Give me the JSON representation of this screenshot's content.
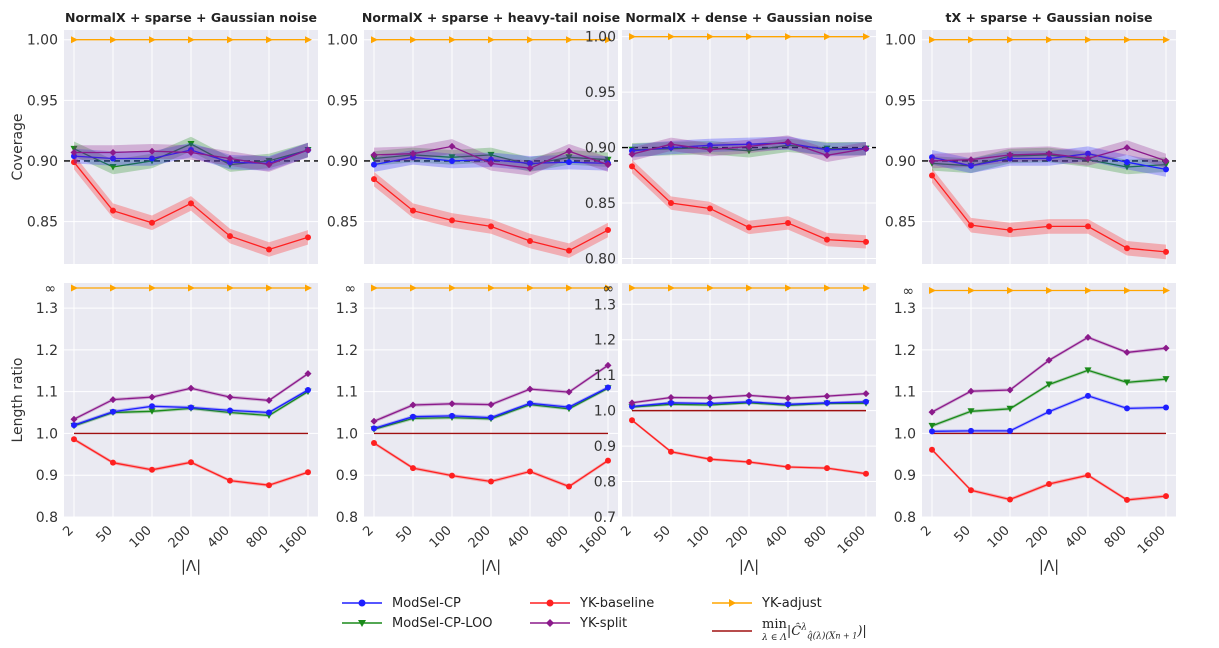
{
  "figure": {
    "x_tick_labels": [
      "2",
      "50",
      "100",
      "200",
      "400",
      "800",
      "1600"
    ],
    "x_axis_label": "|Λ|",
    "inf_label": "∞"
  },
  "legend": {
    "modsel_cp": "ModSel-CP",
    "modsel_cp_loo": "ModSel-CP-LOO",
    "yk_baseline": "YK-baseline",
    "yk_split": "YK-split",
    "yk_adjust": "YK-adjust",
    "min_length_prefix": "min",
    "min_length_sub": "λ ∈ Λ",
    "min_length_body": "|Ĉ",
    "min_length_sup": "λ",
    "min_length_rest": "q̂(λ)(X",
    "min_length_n": "n + 1",
    "min_length_end": ")|"
  },
  "colors": {
    "ModSel-CP": "#1f1fff",
    "ModSel-CP-LOO": "#1a8a1a",
    "YK-baseline": "#ff2020",
    "YK-split": "#8b1a8b",
    "YK-adjust": "#ffa500",
    "min-length": "#a01010",
    "panel_bg": "#eaeaf2",
    "grid": "#ffffff"
  },
  "chart_data": [
    {
      "type": "line",
      "title": "NormalX + sparse + Gaussian noise",
      "row": "coverage",
      "ylabel": "Coverage",
      "ylim": [
        0.815,
        1.008
      ],
      "yticks": [
        0.85,
        0.9,
        0.95,
        1.0
      ],
      "target": 0.9,
      "categories": [
        "2",
        "50",
        "100",
        "200",
        "400",
        "800",
        "1600"
      ],
      "series": [
        {
          "name": "ModSel-CP",
          "values": [
            0.904,
            0.902,
            0.902,
            0.909,
            0.899,
            0.898,
            0.909
          ]
        },
        {
          "name": "ModSel-CP-LOO",
          "values": [
            0.91,
            0.895,
            0.9,
            0.914,
            0.897,
            0.9,
            0.909
          ]
        },
        {
          "name": "YK-baseline",
          "values": [
            0.899,
            0.859,
            0.849,
            0.865,
            0.838,
            0.827,
            0.837
          ]
        },
        {
          "name": "YK-split",
          "values": [
            0.907,
            0.907,
            0.908,
            0.907,
            0.902,
            0.897,
            0.909
          ]
        },
        {
          "name": "YK-adjust",
          "values": [
            1.0,
            1.0,
            1.0,
            1.0,
            1.0,
            1.0,
            1.0
          ]
        }
      ]
    },
    {
      "type": "line",
      "title": "NormalX + sparse + heavy-tail noise",
      "row": "coverage",
      "ylabel": "",
      "ylim": [
        0.815,
        1.008
      ],
      "yticks": [
        0.85,
        0.9,
        0.95,
        1.0
      ],
      "target": 0.9,
      "categories": [
        "2",
        "50",
        "100",
        "200",
        "400",
        "800",
        "1600"
      ],
      "series": [
        {
          "name": "ModSel-CP",
          "values": [
            0.897,
            0.903,
            0.9,
            0.901,
            0.898,
            0.899,
            0.898
          ]
        },
        {
          "name": "ModSel-CP-LOO",
          "values": [
            0.902,
            0.905,
            0.903,
            0.905,
            0.897,
            0.903,
            0.901
          ]
        },
        {
          "name": "YK-baseline",
          "values": [
            0.885,
            0.859,
            0.851,
            0.846,
            0.834,
            0.826,
            0.843
          ]
        },
        {
          "name": "YK-split",
          "values": [
            0.905,
            0.906,
            0.912,
            0.898,
            0.894,
            0.908,
            0.897
          ]
        },
        {
          "name": "YK-adjust",
          "values": [
            1.0,
            1.0,
            1.0,
            1.0,
            1.0,
            1.0,
            1.0
          ]
        }
      ]
    },
    {
      "type": "line",
      "title": "NormalX + dense + Gaussian noise",
      "row": "coverage",
      "ylabel": "",
      "ylim": [
        0.795,
        1.006
      ],
      "yticks": [
        0.8,
        0.85,
        0.9,
        0.95,
        1.0
      ],
      "target": 0.9,
      "categories": [
        "2",
        "50",
        "100",
        "200",
        "400",
        "800",
        "1600"
      ],
      "series": [
        {
          "name": "ModSel-CP",
          "values": [
            0.897,
            0.9,
            0.902,
            0.903,
            0.904,
            0.898,
            0.899
          ]
        },
        {
          "name": "ModSel-CP-LOO",
          "values": [
            0.898,
            0.899,
            0.9,
            0.897,
            0.902,
            0.899,
            0.899
          ]
        },
        {
          "name": "YK-baseline",
          "values": [
            0.883,
            0.85,
            0.845,
            0.828,
            0.832,
            0.817,
            0.815
          ]
        },
        {
          "name": "YK-split",
          "values": [
            0.894,
            0.903,
            0.898,
            0.901,
            0.905,
            0.893,
            0.899
          ]
        },
        {
          "name": "YK-adjust",
          "values": [
            1.0,
            1.0,
            1.0,
            1.0,
            1.0,
            1.0,
            1.0
          ]
        }
      ]
    },
    {
      "type": "line",
      "title": "tX + sparse + Gaussian noise",
      "row": "coverage",
      "ylabel": "",
      "ylim": [
        0.815,
        1.008
      ],
      "yticks": [
        0.85,
        0.9,
        0.95,
        1.0
      ],
      "target": 0.9,
      "categories": [
        "2",
        "50",
        "100",
        "200",
        "400",
        "800",
        "1600"
      ],
      "series": [
        {
          "name": "ModSel-CP",
          "values": [
            0.903,
            0.896,
            0.902,
            0.902,
            0.906,
            0.899,
            0.893
          ]
        },
        {
          "name": "ModSel-CP-LOO",
          "values": [
            0.898,
            0.896,
            0.904,
            0.905,
            0.901,
            0.895,
            0.897
          ]
        },
        {
          "name": "YK-baseline",
          "values": [
            0.888,
            0.847,
            0.843,
            0.846,
            0.846,
            0.828,
            0.825
          ]
        },
        {
          "name": "YK-split",
          "values": [
            0.9,
            0.901,
            0.905,
            0.906,
            0.902,
            0.911,
            0.9
          ]
        },
        {
          "name": "YK-adjust",
          "values": [
            1.0,
            1.0,
            1.0,
            1.0,
            1.0,
            1.0,
            1.0
          ]
        }
      ]
    },
    {
      "type": "line",
      "row": "length",
      "ylabel": "Length ratio",
      "ylim": [
        0.8,
        1.36
      ],
      "yticks": [
        0.8,
        0.9,
        1.0,
        1.1,
        1.2,
        1.3
      ],
      "inf_value": 1.348,
      "categories": [
        "2",
        "50",
        "100",
        "200",
        "400",
        "800",
        "1600"
      ],
      "series": [
        {
          "name": "ModSel-CP",
          "values": [
            1.02,
            1.052,
            1.065,
            1.062,
            1.055,
            1.05,
            1.104
          ]
        },
        {
          "name": "ModSel-CP-LOO",
          "values": [
            1.018,
            1.05,
            1.053,
            1.06,
            1.05,
            1.043,
            1.1
          ]
        },
        {
          "name": "YK-baseline",
          "values": [
            0.986,
            0.93,
            0.913,
            0.931,
            0.887,
            0.876,
            0.907
          ]
        },
        {
          "name": "YK-split",
          "values": [
            1.034,
            1.081,
            1.087,
            1.108,
            1.087,
            1.079,
            1.143
          ]
        },
        {
          "name": "YK-adjust",
          "values": [
            "inf",
            "inf",
            "inf",
            "inf",
            "inf",
            "inf",
            "inf"
          ]
        },
        {
          "name": "min-length",
          "values": [
            1.0,
            1.0,
            1.0,
            1.0,
            1.0,
            1.0,
            1.0
          ]
        }
      ]
    },
    {
      "type": "line",
      "row": "length",
      "ylabel": "",
      "ylim": [
        0.8,
        1.36
      ],
      "yticks": [
        0.8,
        0.9,
        1.0,
        1.1,
        1.2,
        1.3
      ],
      "inf_value": 1.348,
      "categories": [
        "2",
        "50",
        "100",
        "200",
        "400",
        "800",
        "1600"
      ],
      "series": [
        {
          "name": "ModSel-CP",
          "values": [
            1.012,
            1.04,
            1.042,
            1.038,
            1.072,
            1.063,
            1.11
          ]
        },
        {
          "name": "ModSel-CP-LOO",
          "values": [
            1.01,
            1.036,
            1.038,
            1.035,
            1.069,
            1.059,
            1.108
          ]
        },
        {
          "name": "YK-baseline",
          "values": [
            0.977,
            0.917,
            0.899,
            0.885,
            0.909,
            0.873,
            0.935
          ]
        },
        {
          "name": "YK-split",
          "values": [
            1.029,
            1.068,
            1.071,
            1.069,
            1.106,
            1.099,
            1.163
          ]
        },
        {
          "name": "YK-adjust",
          "values": [
            "inf",
            "inf",
            "inf",
            "inf",
            "inf",
            "inf",
            "inf"
          ]
        },
        {
          "name": "min-length",
          "values": [
            1.0,
            1.0,
            1.0,
            1.0,
            1.0,
            1.0,
            1.0
          ]
        }
      ]
    },
    {
      "type": "line",
      "row": "length",
      "ylabel": "",
      "ylim": [
        0.7,
        1.36
      ],
      "yticks": [
        0.7,
        0.8,
        0.9,
        1.0,
        1.1,
        1.2,
        1.3
      ],
      "inf_value": 1.346,
      "categories": [
        "2",
        "50",
        "100",
        "200",
        "400",
        "800",
        "1600"
      ],
      "series": [
        {
          "name": "ModSel-CP",
          "values": [
            1.012,
            1.022,
            1.02,
            1.025,
            1.018,
            1.022,
            1.025
          ]
        },
        {
          "name": "ModSel-CP-LOO",
          "values": [
            1.01,
            1.018,
            1.016,
            1.022,
            1.015,
            1.02,
            1.021
          ]
        },
        {
          "name": "YK-baseline",
          "values": [
            0.973,
            0.884,
            0.863,
            0.855,
            0.841,
            0.838,
            0.822
          ]
        },
        {
          "name": "YK-split",
          "values": [
            1.022,
            1.037,
            1.036,
            1.043,
            1.035,
            1.041,
            1.048
          ]
        },
        {
          "name": "YK-adjust",
          "values": [
            "inf",
            "inf",
            "inf",
            "inf",
            "inf",
            "inf",
            "inf"
          ]
        },
        {
          "name": "min-length",
          "values": [
            1.0,
            1.0,
            1.0,
            1.0,
            1.0,
            1.0,
            1.0
          ]
        }
      ]
    },
    {
      "type": "line",
      "row": "length",
      "ylabel": "",
      "ylim": [
        0.8,
        1.36
      ],
      "yticks": [
        0.8,
        0.9,
        1.0,
        1.1,
        1.2,
        1.3
      ],
      "inf_value": 1.342,
      "categories": [
        "2",
        "50",
        "100",
        "200",
        "400",
        "800",
        "1600"
      ],
      "series": [
        {
          "name": "ModSel-CP",
          "values": [
            1.005,
            1.006,
            1.006,
            1.052,
            1.09,
            1.06,
            1.062
          ]
        },
        {
          "name": "ModSel-CP-LOO",
          "values": [
            1.018,
            1.053,
            1.059,
            1.117,
            1.151,
            1.122,
            1.13
          ]
        },
        {
          "name": "YK-baseline",
          "values": [
            0.961,
            0.864,
            0.842,
            0.879,
            0.9,
            0.841,
            0.85
          ]
        },
        {
          "name": "YK-split",
          "values": [
            1.051,
            1.101,
            1.104,
            1.175,
            1.23,
            1.194,
            1.204
          ]
        },
        {
          "name": "YK-adjust",
          "values": [
            "inf",
            "inf",
            "inf",
            "inf",
            "inf",
            "inf",
            "inf"
          ]
        },
        {
          "name": "min-length",
          "values": [
            1.0,
            1.0,
            1.0,
            1.0,
            1.0,
            1.0,
            1.0
          ]
        }
      ]
    }
  ]
}
